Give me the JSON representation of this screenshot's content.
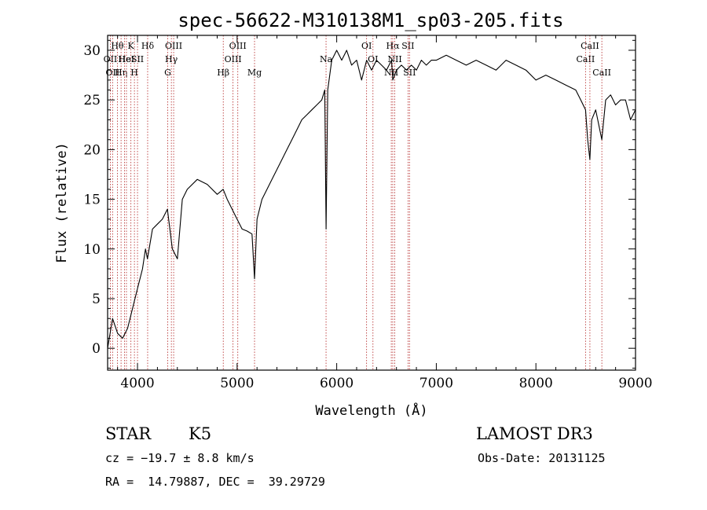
{
  "chart_data": {
    "type": "line",
    "title": "spec-56622-M310138M1_sp03-205.fits",
    "xlabel": "Wavelength (Å)",
    "ylabel": "Flux (relative)",
    "xlim": [
      3700,
      9000
    ],
    "ylim": [
      -2.2,
      31.5
    ],
    "x_ticks": [
      4000,
      5000,
      6000,
      7000,
      8000,
      9000
    ],
    "y_ticks": [
      0,
      5,
      10,
      15,
      20,
      25,
      30
    ],
    "grid": false,
    "series": [
      {
        "color": "#000000",
        "x": [
          3700,
          3750,
          3800,
          3850,
          3900,
          3950,
          4000,
          4050,
          4080,
          4100,
          4150,
          4200,
          4250,
          4300,
          4350,
          4400,
          4450,
          4500,
          4600,
          4700,
          4800,
          4860,
          4900,
          4950,
          5000,
          5050,
          5100,
          5150,
          5175,
          5200,
          5250,
          5300,
          5350,
          5400,
          5450,
          5500,
          5550,
          5600,
          5650,
          5700,
          5750,
          5800,
          5850,
          5880,
          5893,
          5910,
          5950,
          6000,
          6050,
          6100,
          6150,
          6200,
          6250,
          6300,
          6350,
          6400,
          6450,
          6500,
          6550,
          6563,
          6600,
          6650,
          6700,
          6750,
          6800,
          6850,
          6900,
          6950,
          7000,
          7100,
          7200,
          7300,
          7400,
          7500,
          7600,
          7700,
          7800,
          7900,
          8000,
          8100,
          8200,
          8300,
          8400,
          8450,
          8498,
          8520,
          8542,
          8560,
          8600,
          8662,
          8700,
          8750,
          8800,
          8850,
          8900,
          8950,
          9000
        ],
        "y": [
          0,
          3,
          1.5,
          1,
          2,
          4,
          6,
          8,
          10,
          9,
          12,
          12.5,
          13,
          14,
          10,
          9,
          15,
          16,
          17,
          16.5,
          15.5,
          16,
          15,
          14,
          13,
          12,
          11.8,
          11.5,
          7,
          13,
          15,
          16,
          17,
          18,
          19,
          20,
          21,
          22,
          23,
          23.5,
          24,
          24.5,
          25,
          26,
          12,
          26,
          29,
          30,
          29,
          30,
          28.5,
          29,
          27,
          29,
          28,
          29,
          28.5,
          28,
          29,
          27,
          28,
          28.5,
          28,
          28.5,
          28,
          29,
          28.5,
          29,
          29,
          29.5,
          29,
          28.5,
          29,
          28.5,
          28,
          29,
          28.5,
          28,
          27,
          27.5,
          27,
          26.5,
          26,
          25,
          24,
          21,
          19,
          23,
          24,
          21,
          25,
          25.5,
          24.5,
          25,
          25,
          23,
          24
        ]
      }
    ],
    "line_markers": [
      {
        "wavelength": 3727,
        "label": "OII",
        "row": 1
      },
      {
        "wavelength": 3750,
        "label": "OII",
        "row": 2
      },
      {
        "wavelength": 3798,
        "label": "Hθ",
        "row": 0
      },
      {
        "wavelength": 3835,
        "label": "Hη",
        "row": 2
      },
      {
        "wavelength": 3869,
        "label": "He",
        "row": 1
      },
      {
        "wavelength": 3889,
        "label": "HeI",
        "row": 1
      },
      {
        "wavelength": 3934,
        "label": "K",
        "row": 0
      },
      {
        "wavelength": 3969,
        "label": "H",
        "row": 2
      },
      {
        "wavelength": 4000,
        "label": "SII",
        "row": 1
      },
      {
        "wavelength": 4102,
        "label": "Hδ",
        "row": 0
      },
      {
        "wavelength": 4304,
        "label": "G",
        "row": 2
      },
      {
        "wavelength": 4340,
        "label": "Hγ",
        "row": 1
      },
      {
        "wavelength": 4363,
        "label": "OIII",
        "row": 0
      },
      {
        "wavelength": 4861,
        "label": "Hβ",
        "row": 2
      },
      {
        "wavelength": 4959,
        "label": "OIII",
        "row": 1
      },
      {
        "wavelength": 5007,
        "label": "OIII",
        "row": 0
      },
      {
        "wavelength": 5175,
        "label": "Mg",
        "row": 2
      },
      {
        "wavelength": 5893,
        "label": "Na",
        "row": 1
      },
      {
        "wavelength": 6300,
        "label": "OI",
        "row": 0
      },
      {
        "wavelength": 6364,
        "label": "OI",
        "row": 1
      },
      {
        "wavelength": 6548,
        "label": "NII",
        "row": 2
      },
      {
        "wavelength": 6563,
        "label": "Hα",
        "row": 0
      },
      {
        "wavelength": 6583,
        "label": "NII",
        "row": 1
      },
      {
        "wavelength": 6716,
        "label": "SII",
        "row": 0
      },
      {
        "wavelength": 6731,
        "label": "SII",
        "row": 2
      },
      {
        "wavelength": 8498,
        "label": "CaII",
        "row": 1
      },
      {
        "wavelength": 8542,
        "label": "CaII",
        "row": 0
      },
      {
        "wavelength": 8662,
        "label": "CaII",
        "row": 2
      }
    ]
  },
  "info": {
    "object_class": "STAR",
    "subclass": "K5",
    "survey": "LAMOST DR3",
    "cz": "cz = −19.7 ± 8.8 km/s",
    "obs_date": "Obs-Date: 20131125",
    "coords": "RA =  14.79887, DEC =  39.29729"
  }
}
